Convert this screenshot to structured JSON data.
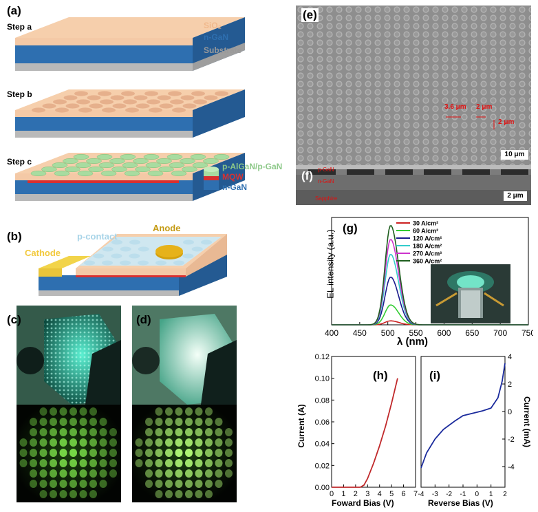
{
  "panels": {
    "a": {
      "label": "(a)",
      "steps": [
        "Step a",
        "Step b",
        "Step c"
      ],
      "layer_sio2": "SiO₂",
      "layer_ngan": "n-GaN",
      "layer_substrate": "Substrate",
      "layer_palgan": "p-AlGaN/p-GaN",
      "layer_mqw": "MQW",
      "layer_ngan2": "n-GaN"
    },
    "b": {
      "label": "(b)",
      "cathode": "Cathode",
      "pcontact": "p-contact",
      "anode": "Anode"
    },
    "c": {
      "label": "(c)"
    },
    "d": {
      "label": "(d)"
    },
    "e": {
      "label": "(e)",
      "scale": "10 μm",
      "dim1": "3.6 μm",
      "dim2": "2 μm",
      "dim3": "2 μm"
    },
    "f": {
      "label": "(f)",
      "scale": "2 μm",
      "tag1": "p-GaN",
      "tag2": "n-GaN",
      "tag3": "Sapphire"
    },
    "g": {
      "label": "(g)"
    },
    "h": {
      "label": "(h)"
    },
    "i": {
      "label": "(i)"
    }
  },
  "colors": {
    "sio2": "#f4c9a6",
    "ngan": "#2e6fb0",
    "substrate": "#b9b9b9",
    "mqw": "#d93030",
    "pgan": "#a8dca0",
    "anode": "#d4a10e",
    "cathode": "#f2d44a"
  },
  "chart_data": [
    {
      "type": "line",
      "title": "(g)",
      "xlabel": "λ (nm)",
      "ylabel": "EL intensity (a.u.)",
      "xlim": [
        400,
        750
      ],
      "ylim": [
        0,
        1.08
      ],
      "xticks": [
        400,
        450,
        500,
        550,
        600,
        650,
        700,
        750
      ],
      "peak_nm": 505,
      "series": [
        {
          "name": "30 A/cm²",
          "color": "#cc2222",
          "peak": 0.04
        },
        {
          "name": "60 A/cm²",
          "color": "#33cc33",
          "peak": 0.2
        },
        {
          "name": "120 A/cm²",
          "color": "#1a1a8c",
          "peak": 0.48
        },
        {
          "name": "180 A/cm²",
          "color": "#33cccc",
          "peak": 0.71
        },
        {
          "name": "270 A/cm²",
          "color": "#cc33cc",
          "peak": 0.86
        },
        {
          "name": "360 A/cm²",
          "color": "#1e5e1e",
          "peak": 1.0
        }
      ]
    },
    {
      "type": "line",
      "title": "(h)",
      "xlabel": "Foward Bias (V)",
      "ylabel": "Current (A)",
      "xlim": [
        0,
        7
      ],
      "ylim": [
        0,
        0.12
      ],
      "xticks": [
        0,
        1,
        2,
        3,
        4,
        5,
        6,
        7
      ],
      "yticks": [
        "0.00",
        "0.02",
        "0.04",
        "0.06",
        "0.08",
        "0.10",
        "0.12"
      ],
      "series": [
        {
          "name": "I-V forward",
          "color": "#c0282a",
          "x": [
            0,
            2.4,
            2.7,
            3.0,
            3.5,
            4.0,
            4.5,
            5.0,
            5.5
          ],
          "y": [
            0,
            0,
            0.002,
            0.008,
            0.022,
            0.038,
            0.056,
            0.077,
            0.1
          ]
        }
      ]
    },
    {
      "type": "line",
      "title": "(i)",
      "xlabel": "Reverse Bias (V)",
      "ylabel": "Current (mA)",
      "xlim": [
        -4,
        2
      ],
      "ylim": [
        -5.5,
        4
      ],
      "xticks": [
        -4,
        -3,
        -2,
        -1,
        0,
        1,
        2
      ],
      "yticks": [
        4,
        2,
        0,
        -2,
        -4
      ],
      "series": [
        {
          "name": "I-V reverse",
          "color": "#1a2a9c",
          "x": [
            -4,
            -3.6,
            -3.0,
            -2.4,
            -1.6,
            -1.0,
            -0.4,
            0.4,
            1.0,
            1.5,
            1.8,
            2.0
          ],
          "y": [
            -4.1,
            -3.0,
            -2.0,
            -1.3,
            -0.7,
            -0.3,
            -0.15,
            0.05,
            0.25,
            1.0,
            2.2,
            3.5
          ]
        }
      ]
    }
  ]
}
